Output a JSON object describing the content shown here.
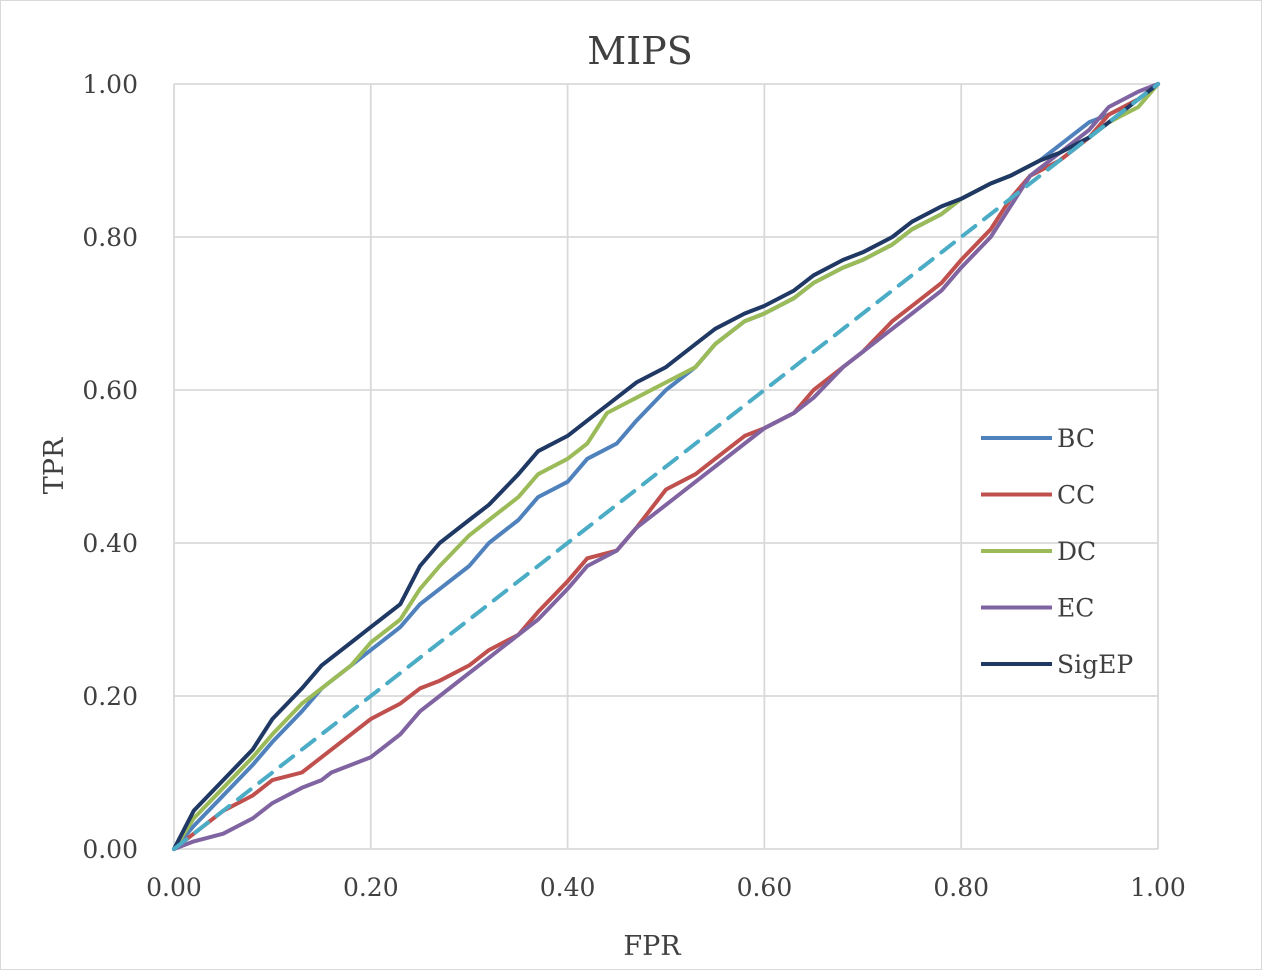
{
  "chart_data": {
    "type": "line",
    "title": "MIPS",
    "xlabel": "FPR",
    "ylabel": "TPR",
    "xlim": [
      0,
      1
    ],
    "ylim": [
      0,
      1
    ],
    "x_ticks": [
      "0.00",
      "0.20",
      "0.40",
      "0.60",
      "0.80",
      "1.00"
    ],
    "y_ticks": [
      "0.00",
      "0.20",
      "0.40",
      "0.60",
      "0.80",
      "1.00"
    ],
    "grid": true,
    "legend_position": "right",
    "series": [
      {
        "name": "BC",
        "color": "#4f81bd",
        "dashed": false,
        "x": [
          0,
          0.02,
          0.05,
          0.08,
          0.1,
          0.13,
          0.15,
          0.18,
          0.2,
          0.23,
          0.25,
          0.27,
          0.3,
          0.32,
          0.35,
          0.37,
          0.4,
          0.42,
          0.45,
          0.47,
          0.5,
          0.53,
          0.55,
          0.58,
          0.6,
          0.63,
          0.65,
          0.68,
          0.7,
          0.73,
          0.75,
          0.78,
          0.8,
          0.83,
          0.85,
          0.88,
          0.9,
          0.93,
          0.95,
          0.98,
          1.0
        ],
        "y": [
          0,
          0.03,
          0.07,
          0.11,
          0.14,
          0.18,
          0.21,
          0.24,
          0.26,
          0.29,
          0.32,
          0.34,
          0.37,
          0.4,
          0.43,
          0.46,
          0.48,
          0.51,
          0.53,
          0.56,
          0.6,
          0.63,
          0.66,
          0.69,
          0.7,
          0.72,
          0.74,
          0.76,
          0.77,
          0.79,
          0.81,
          0.83,
          0.85,
          0.87,
          0.88,
          0.9,
          0.92,
          0.95,
          0.96,
          0.98,
          1.0
        ]
      },
      {
        "name": "CC",
        "color": "#c0504d",
        "dashed": false,
        "x": [
          0,
          0.02,
          0.05,
          0.08,
          0.1,
          0.13,
          0.15,
          0.18,
          0.2,
          0.23,
          0.25,
          0.27,
          0.3,
          0.32,
          0.35,
          0.37,
          0.4,
          0.42,
          0.45,
          0.47,
          0.5,
          0.53,
          0.55,
          0.58,
          0.6,
          0.63,
          0.65,
          0.68,
          0.7,
          0.73,
          0.75,
          0.78,
          0.8,
          0.83,
          0.85,
          0.87,
          0.9,
          0.93,
          0.95,
          0.98,
          1.0
        ],
        "y": [
          0,
          0.02,
          0.05,
          0.07,
          0.09,
          0.1,
          0.12,
          0.15,
          0.17,
          0.19,
          0.21,
          0.22,
          0.24,
          0.26,
          0.28,
          0.31,
          0.35,
          0.38,
          0.39,
          0.42,
          0.47,
          0.49,
          0.51,
          0.54,
          0.55,
          0.57,
          0.6,
          0.63,
          0.65,
          0.69,
          0.71,
          0.74,
          0.77,
          0.81,
          0.85,
          0.88,
          0.9,
          0.93,
          0.96,
          0.98,
          1.0
        ]
      },
      {
        "name": "DC",
        "color": "#9bbb59",
        "dashed": false,
        "x": [
          0,
          0.02,
          0.05,
          0.08,
          0.1,
          0.13,
          0.15,
          0.18,
          0.2,
          0.23,
          0.25,
          0.27,
          0.3,
          0.32,
          0.35,
          0.37,
          0.4,
          0.42,
          0.44,
          0.47,
          0.5,
          0.53,
          0.55,
          0.58,
          0.6,
          0.63,
          0.65,
          0.68,
          0.7,
          0.73,
          0.75,
          0.78,
          0.8,
          0.83,
          0.85,
          0.88,
          0.9,
          0.93,
          0.95,
          0.98,
          1.0
        ],
        "y": [
          0,
          0.04,
          0.08,
          0.12,
          0.15,
          0.19,
          0.21,
          0.24,
          0.27,
          0.3,
          0.34,
          0.37,
          0.41,
          0.43,
          0.46,
          0.49,
          0.51,
          0.53,
          0.57,
          0.59,
          0.61,
          0.63,
          0.66,
          0.69,
          0.7,
          0.72,
          0.74,
          0.76,
          0.77,
          0.79,
          0.81,
          0.83,
          0.85,
          0.87,
          0.88,
          0.9,
          0.91,
          0.93,
          0.95,
          0.97,
          1.0
        ]
      },
      {
        "name": "EC",
        "color": "#8064a2",
        "dashed": false,
        "x": [
          0,
          0.02,
          0.05,
          0.08,
          0.1,
          0.13,
          0.15,
          0.16,
          0.18,
          0.2,
          0.23,
          0.25,
          0.27,
          0.3,
          0.32,
          0.35,
          0.37,
          0.4,
          0.42,
          0.45,
          0.47,
          0.5,
          0.53,
          0.55,
          0.58,
          0.6,
          0.63,
          0.65,
          0.68,
          0.7,
          0.73,
          0.75,
          0.78,
          0.8,
          0.83,
          0.85,
          0.87,
          0.9,
          0.93,
          0.95,
          0.98,
          1.0
        ],
        "y": [
          0,
          0.01,
          0.02,
          0.04,
          0.06,
          0.08,
          0.09,
          0.1,
          0.11,
          0.12,
          0.15,
          0.18,
          0.2,
          0.23,
          0.25,
          0.28,
          0.3,
          0.34,
          0.37,
          0.39,
          0.42,
          0.45,
          0.48,
          0.5,
          0.53,
          0.55,
          0.57,
          0.59,
          0.63,
          0.65,
          0.68,
          0.7,
          0.73,
          0.76,
          0.8,
          0.84,
          0.88,
          0.91,
          0.94,
          0.97,
          0.99,
          1.0
        ]
      },
      {
        "name": "SigEP",
        "color": "#1f3864",
        "dashed": false,
        "x": [
          0,
          0.02,
          0.05,
          0.08,
          0.1,
          0.13,
          0.15,
          0.18,
          0.2,
          0.23,
          0.25,
          0.27,
          0.3,
          0.32,
          0.35,
          0.37,
          0.4,
          0.42,
          0.45,
          0.47,
          0.5,
          0.53,
          0.55,
          0.58,
          0.6,
          0.63,
          0.65,
          0.68,
          0.7,
          0.73,
          0.75,
          0.78,
          0.8,
          0.83,
          0.85,
          0.88,
          0.9,
          0.93,
          0.95,
          0.98,
          1.0
        ],
        "y": [
          0,
          0.05,
          0.09,
          0.13,
          0.17,
          0.21,
          0.24,
          0.27,
          0.29,
          0.32,
          0.37,
          0.4,
          0.43,
          0.45,
          0.49,
          0.52,
          0.54,
          0.56,
          0.59,
          0.61,
          0.63,
          0.66,
          0.68,
          0.7,
          0.71,
          0.73,
          0.75,
          0.77,
          0.78,
          0.8,
          0.82,
          0.84,
          0.85,
          0.87,
          0.88,
          0.9,
          0.91,
          0.93,
          0.95,
          0.98,
          1.0
        ]
      },
      {
        "name": "",
        "color": "#4bacc6",
        "dashed": true,
        "x": [
          0,
          1
        ],
        "y": [
          0,
          1
        ]
      }
    ]
  }
}
